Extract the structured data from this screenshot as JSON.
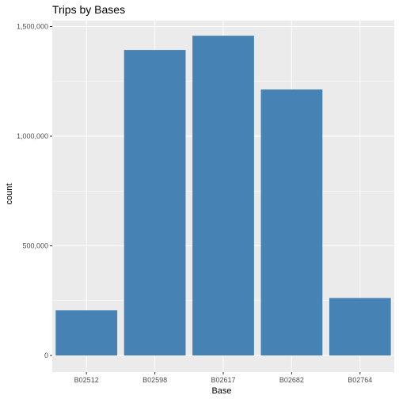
{
  "chart_data": {
    "type": "bar",
    "title": "Trips by Bases",
    "xlabel": "Base",
    "ylabel": "count",
    "categories": [
      "B02512",
      "B02598",
      "B02617",
      "B02682",
      "B02764"
    ],
    "values": [
      205673,
      1393113,
      1458023,
      1212789,
      262000
    ],
    "ylim": [
      0,
      1530000
    ],
    "yticks": [
      0,
      500000,
      1000000,
      1500000
    ],
    "ytick_labels": [
      "0",
      "500,000",
      "1,000,000",
      "1,500,000"
    ],
    "bar_color": "#4682B4",
    "panel_background": "#EBEBEB",
    "grid": true,
    "legend": "none"
  }
}
